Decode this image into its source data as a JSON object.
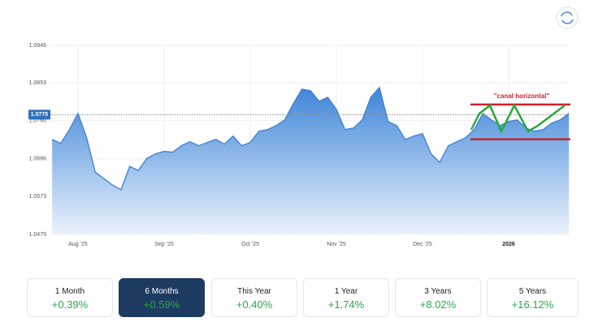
{
  "chart_data": {
    "type": "area",
    "categories": [
      null,
      null,
      null,
      "Aug '25",
      null,
      null,
      null,
      null,
      null,
      null,
      null,
      null,
      null,
      "Sep '25",
      null,
      null,
      null,
      null,
      null,
      null,
      null,
      null,
      null,
      "Oct '25",
      null,
      null,
      null,
      null,
      null,
      null,
      null,
      null,
      null,
      "Nov '25",
      null,
      null,
      null,
      null,
      null,
      null,
      null,
      null,
      null,
      "Dec '25",
      null,
      null,
      null,
      null,
      null,
      null,
      null,
      null,
      null,
      "2026",
      null,
      null,
      null,
      null,
      null,
      null,
      null
    ],
    "values": [
      1.0714,
      1.0704,
      1.0738,
      1.0778,
      1.0718,
      1.0633,
      1.0617,
      1.0601,
      1.0589,
      1.0647,
      1.0637,
      1.0667,
      1.0678,
      1.0684,
      1.0682,
      1.0698,
      1.0708,
      1.0698,
      1.0706,
      1.0714,
      1.0702,
      1.0722,
      1.0698,
      1.0706,
      1.0734,
      1.0738,
      1.0748,
      1.0762,
      1.0802,
      1.0838,
      1.0834,
      1.0808,
      1.0818,
      1.0788,
      1.0738,
      1.0742,
      1.0762,
      1.0818,
      1.0842,
      1.0758,
      1.0748,
      1.0714,
      1.0722,
      1.0728,
      1.0678,
      1.0657,
      1.0698,
      1.0708,
      1.0718,
      1.0738,
      1.0778,
      1.0762,
      1.0748,
      1.0758,
      1.0762,
      1.0742,
      1.0734,
      1.0738,
      1.0754,
      1.0762,
      1.0778
    ],
    "color": "#3d7fd0",
    "ylim": [
      1.0479,
      1.0946
    ],
    "yticks": [
      1.0946,
      1.0853,
      {
        "value": 1.076,
        "label": "1.0760"
      },
      1.0666,
      1.0573,
      1.0479
    ],
    "grid": true,
    "current_value": 1.0775,
    "channel": {
      "label": "\"canal horizontal\"",
      "upper": 1.08,
      "lower": 1.0714,
      "color": "#d0202a"
    }
  },
  "periods": [
    {
      "label": "1 Month",
      "change": "+0.39%"
    },
    {
      "label": "6 Months",
      "change": "+0.59%"
    },
    {
      "label": "This Year",
      "change": "+0.40%"
    },
    {
      "label": "1 Year",
      "change": "+1.74%"
    },
    {
      "label": "3 Years",
      "change": "+8.02%"
    },
    {
      "label": "5 Years",
      "change": "+16.12%"
    }
  ],
  "selected_period": 1
}
